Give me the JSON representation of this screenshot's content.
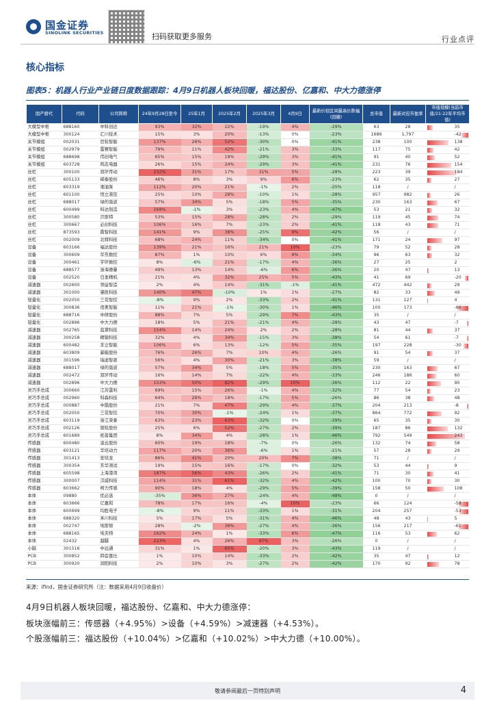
{
  "header": {
    "logo_cn": "国金证券",
    "logo_en": "SINOLINK SECURITIES",
    "qr_caption": "扫码获取更多服务",
    "tag": "行业点评"
  },
  "section_title": "核心指标",
  "figure_title": "图表5：机器人行业产业链日度数据跟踪：4月9日机器人板块回暖，福达股份、亿嘉和、中大力德涨停",
  "table": {
    "columns": [
      "国产替代",
      "代码",
      "公司简称",
      "24年9月28日至今",
      "25年1月",
      "2025年2月",
      "2025年3月",
      "4月9日",
      "最新价较区间最高价跌幅(回撤)",
      "总市值",
      "最新对应市盈率",
      "市值规模(当前市值/21-22年平均市值)"
    ],
    "rows": [
      [
        "大模型中枢",
        "688160",
        "中科创达",
        "93%",
        "32%",
        "22%",
        "-19%",
        "4%",
        "-29%",
        "63",
        "28",
        "35",
        35
      ],
      [
        "大模型中枢",
        "300124",
        "汇川技术",
        "15%",
        "3%",
        "20%",
        "-13%",
        "0%",
        "-23%",
        "1686",
        "1,797",
        "-42",
        -42
      ],
      [
        "关节模组",
        "002031",
        "巨轮智能",
        "137%",
        "26%",
        "52%",
        "-30%",
        "0%",
        "-41%",
        "238",
        "100",
        "138",
        138
      ],
      [
        "关节模组",
        "002979",
        "雷赛智能",
        "79%",
        "11%",
        "42%",
        "-21%",
        "3%",
        "-33%",
        "117",
        "75",
        "42",
        42
      ],
      [
        "关节模组",
        "688698",
        "伟创电气",
        "65%",
        "15%",
        "19%",
        "-29%",
        "3%",
        "-41%",
        "91",
        "40",
        "52",
        52
      ],
      [
        "关节模组",
        "603728",
        "鸣志电器",
        "26%",
        "15%",
        "24%",
        "-29%",
        "3%",
        "-41%",
        "231",
        "76",
        "154",
        154
      ],
      [
        "丝杠",
        "300100",
        "双环传动",
        "232%",
        "31%",
        "17%",
        "31%",
        "5%",
        "-28%",
        "223",
        "39",
        "184",
        184
      ],
      [
        "丝杠",
        "605133",
        "嵘泰股份",
        "46%",
        "8%",
        "3%",
        "9%",
        "6%",
        "-23%",
        "62",
        "35",
        "27",
        27
      ],
      [
        "丝杠",
        "603319",
        "湘油泵",
        "112%",
        "20%",
        "21%",
        "-1%",
        "2%",
        "-25%",
        "118",
        "/",
        "/",
        0
      ],
      [
        "丝杠",
        "601100",
        "恒立液压",
        "25%",
        "10%",
        "28%",
        "-10%",
        "1%",
        "-28%",
        "957",
        "982",
        "26",
        26
      ],
      [
        "丝杠",
        "688017",
        "绿的谐波",
        "57%",
        "34%",
        "5%",
        "-18%",
        "5%",
        "-35%",
        "230",
        "163",
        "67",
        67
      ],
      [
        "丝杠",
        "600499",
        "科达制造",
        "169%",
        "-1%",
        "3%",
        "-23%",
        "4%",
        "-47%",
        "53",
        "21",
        "32",
        32
      ],
      [
        "丝杠",
        "300580",
        "贝斯特",
        "53%",
        "15%",
        "28%",
        "-28%",
        "2%",
        "-29%",
        "119",
        "45",
        "74",
        74
      ],
      [
        "丝杠",
        "300667",
        "必创科技",
        "106%",
        "16%",
        "7%",
        "-23%",
        "2%",
        "-41%",
        "118",
        "43",
        "71",
        71
      ],
      [
        "丝杠",
        "873593",
        "鼎智科技",
        "141%",
        "9%",
        "38%",
        "-25%",
        "9%",
        "-42%",
        "56",
        "/",
        "/",
        0
      ],
      [
        "丝杠",
        "002009",
        "北特科技",
        "68%",
        "24%",
        "11%",
        "-34%",
        "0%",
        "-41%",
        "171",
        "24",
        "97",
        97
      ],
      [
        "设备",
        "603166",
        "福达股份",
        "139%",
        "21%",
        "16%",
        "21%",
        "10%",
        "-23%",
        "79",
        "52",
        "28",
        28
      ],
      [
        "设备",
        "300609",
        "华东数控",
        "87%",
        "1%",
        "10%",
        "6%",
        "6%",
        "-34%",
        "96",
        "63",
        "32",
        32
      ],
      [
        "设备",
        "300461",
        "宇环数控",
        "8%",
        "-6%",
        "21%",
        "-17%",
        "4%",
        "-36%",
        "27",
        "25",
        "2",
        2
      ],
      [
        "设备",
        "688577",
        "浙海德曼",
        "49%",
        "13%",
        "14%",
        "-6%",
        "6%",
        "-36%",
        "20",
        "47",
        "13",
        13
      ],
      [
        "设备",
        "002520",
        "日发精机",
        "21%",
        "4%",
        "32%",
        "25%",
        "5%",
        "-43%",
        "41",
        "69",
        "-20",
        -20
      ],
      [
        "减速器",
        "002600",
        "领益智造",
        "2%",
        "4%",
        "14%",
        "-31%",
        "-1%",
        "-41%",
        "472",
        "442",
        "29",
        29
      ],
      [
        "减速器",
        "301000",
        "肇民科技",
        "140%",
        "47%",
        "-10%",
        "1%",
        "1%",
        "-27%",
        "82",
        "33",
        "49",
        49
      ],
      [
        "轻量化",
        "002050",
        "三花智控",
        "-8%",
        "9%",
        "2%",
        "-33%",
        "2%",
        "-41%",
        "131",
        "127",
        "4",
        4
      ],
      [
        "轻量化",
        "300836",
        "佰奥智能",
        "11%",
        "21%",
        "-1%",
        "-30%",
        "1%",
        "-46%",
        "100",
        "173",
        "-66",
        -66
      ],
      [
        "轻量化",
        "688716",
        "中研股份",
        "88%",
        "7%",
        "5%",
        "-29%",
        "7%",
        "-43%",
        "35",
        "/",
        "/",
        0
      ],
      [
        "轻量化",
        "002896",
        "中大力德",
        "18%",
        "5%",
        "21%",
        "-21%",
        "4%",
        "-28%",
        "43",
        "47",
        "-7",
        -7
      ],
      [
        "减速器",
        "002765",
        "蓝黛科技",
        "154%",
        "14%",
        "24%",
        "2%",
        "2%",
        "-28%",
        "81",
        "44",
        "37",
        37
      ],
      [
        "减速器",
        "300258",
        "精锻科技",
        "32%",
        "4%",
        "34%",
        "-15%",
        "3%",
        "-38%",
        "54",
        "61",
        "-7",
        -7
      ],
      [
        "减速器",
        "600482",
        "丰立智能",
        "106%",
        "6%",
        "13%",
        "-12%",
        "5%",
        "-35%",
        "197",
        "228",
        "-30",
        -30
      ],
      [
        "减速器",
        "603809",
        "豪能股份",
        "76%",
        "26%",
        "7%",
        "10%",
        "4%",
        "-26%",
        "91",
        "54",
        "37",
        37
      ],
      [
        "减速器",
        "301596",
        "瑞迪智驱",
        "56%",
        "4%",
        "30%",
        "-21%",
        "3%",
        "-38%",
        "59",
        "/",
        "/",
        0
      ],
      [
        "减速器",
        "688017",
        "绿的谐波",
        "57%",
        "34%",
        "5%",
        "-18%",
        "5%",
        "-35%",
        "230",
        "163",
        "67",
        67
      ],
      [
        "减速器",
        "002472",
        "双环传动",
        "16%",
        "14%",
        "7%",
        "-22%",
        "4%",
        "-33%",
        "246",
        "186",
        "60",
        60
      ],
      [
        "减速器",
        "002896",
        "中大力德",
        "153%",
        "50%",
        "82%",
        "-29%",
        "10%",
        "-36%",
        "112",
        "22",
        "90",
        90
      ],
      [
        "灵巧手总成",
        "300660",
        "江苏雷利",
        "69%",
        "15%",
        "26%",
        "-1%",
        "4%",
        "-32%",
        "77",
        "54",
        "23",
        23
      ],
      [
        "灵巧手总成",
        "002960",
        "科森科技",
        "64%",
        "26%",
        "18%",
        "-17%",
        "5%",
        "-26%",
        "86",
        "38",
        "48",
        48
      ],
      [
        "灵巧手总成",
        "000887",
        "中鼎股份",
        "21%",
        "7%",
        "47%",
        "-29%",
        "4%",
        "-37%",
        "204",
        "213",
        "-8",
        -8
      ],
      [
        "灵巧手总成",
        "002050",
        "三花智控",
        "70%",
        "30%",
        "-1%",
        "-24%",
        "1%",
        "-37%",
        "864",
        "772",
        "92",
        92
      ],
      [
        "灵巧手总成",
        "603119",
        "浙江荣泰",
        "63%",
        "23%",
        "63%",
        "-32%",
        "0%",
        "-39%",
        "65",
        "35",
        "30",
        30
      ],
      [
        "灵巧手总成",
        "002126",
        "银轮股份",
        "25%",
        "6%",
        "52%",
        "-27%",
        "2%",
        "-39%",
        "187",
        "86",
        "132",
        132
      ],
      [
        "灵巧手总成",
        "601689",
        "拓普集团",
        "8%",
        "34%",
        "4%",
        "-28%",
        "1%",
        "-46%",
        "792",
        "549",
        "243",
        243
      ],
      [
        "传感器",
        "600480",
        "凌云股份",
        "60%",
        "19%",
        "18%",
        "-7%",
        "0%",
        "-26%",
        "132",
        "74",
        "58",
        58
      ],
      [
        "传感器",
        "603121",
        "华培动力",
        "117%",
        "20%",
        "36%",
        "-6%",
        "1%",
        "-21%",
        "57",
        "28",
        "29",
        29
      ],
      [
        "传感器",
        "301413",
        "安培龙",
        "86%",
        "41%",
        "20%",
        "20%",
        "7%",
        "-38%",
        "71",
        "/",
        "/",
        0
      ],
      [
        "传感器",
        "300354",
        "东华测试",
        "19%",
        "15%",
        "16%",
        "-17%",
        "0%",
        "-32%",
        "53",
        "44",
        "9",
        9
      ],
      [
        "传感器",
        "605598",
        "上海港湾",
        "187%",
        "56%",
        "43%",
        "-26%",
        "2%",
        "-41%",
        "71",
        "30",
        "41",
        41
      ],
      [
        "传感器",
        "300007",
        "汉威科技",
        "114%",
        "31%",
        "61%",
        "-32%",
        "4%",
        "-42%",
        "100",
        "70",
        "30",
        30
      ],
      [
        "传感器",
        "603662",
        "柯力传感",
        "90%",
        "18%",
        "4%",
        "-29%",
        "5%",
        "-39%",
        "158",
        "50",
        "108",
        108
      ],
      [
        "本体",
        "09880",
        "优必选",
        "-35%",
        "36%",
        "27%",
        "-24%",
        "4%",
        "-48%",
        "0",
        "/",
        "/",
        0
      ],
      [
        "本体",
        "603666",
        "亿嘉和",
        "78%",
        "17%",
        "16%",
        "-4%",
        "10%",
        "-23%",
        "66",
        "124",
        "-58",
        -58
      ],
      [
        "本体",
        "600699",
        "均胜电子",
        "-8%",
        "9%",
        "11%",
        "-33%",
        "1%",
        "-31%",
        "204",
        "257",
        "-53",
        -53
      ],
      [
        "本体",
        "688320",
        "禾川科技",
        "5%",
        "17%",
        "5%",
        "-31%",
        "4%",
        "-46%",
        "48",
        "43",
        "5",
        5
      ],
      [
        "本体",
        "002747",
        "埃斯顿",
        "28%",
        "-2%",
        "36%",
        "-27%",
        "4%",
        "-36%",
        "156",
        "217",
        "-61",
        -61
      ],
      [
        "本体",
        "688165",
        "埃夫特",
        "162%",
        "24%",
        "1%",
        "-33%",
        "6%",
        "-47%",
        "116",
        "53",
        "62",
        62
      ],
      [
        "本体",
        "02432",
        "越疆",
        "223%",
        "4%",
        "26%",
        "97%",
        "3%",
        "-26%",
        "0",
        "/",
        "/",
        0
      ],
      [
        "小脑",
        "301516",
        "中远通",
        "31%",
        "1%",
        "65%",
        "-20%",
        "3%",
        "-43%",
        "119",
        "/",
        "/",
        0
      ],
      [
        "PCB",
        "300852",
        "四会富仕",
        "1%",
        "10%",
        "14%",
        "-33%",
        "2%",
        "-42%",
        "35",
        "47",
        "12",
        12
      ],
      [
        "PCB",
        "300920",
        "润阳科技",
        "2%",
        "10%",
        "3%",
        "-27%",
        "2%",
        "-42%",
        "170",
        "92",
        "78",
        78
      ]
    ]
  },
  "source_note": "来源：ifind，国金证券研究所（注：数据采用4月9日收盘价）",
  "paragraphs": [
    "4月9日机器人板块回暖，福达股份、亿嘉和、中大力德涨停：",
    "板块涨幅前三：传感器（+4.95%）>设备（+4.59%）>减速器（+4.53%）。",
    "个股涨幅前三：福达股份（+10.04%）>亿嘉和（+10.02%）>中大力德（+10.00%）。"
  ],
  "footer": {
    "disclaimer": "敬请参阅最后一页特别声明",
    "page": "4"
  },
  "colors": {
    "brand": "#1f4e8c",
    "positive_fill": "#f6c6c6",
    "negative_fill": "#cdebd0",
    "bar": "#e94a4a"
  }
}
